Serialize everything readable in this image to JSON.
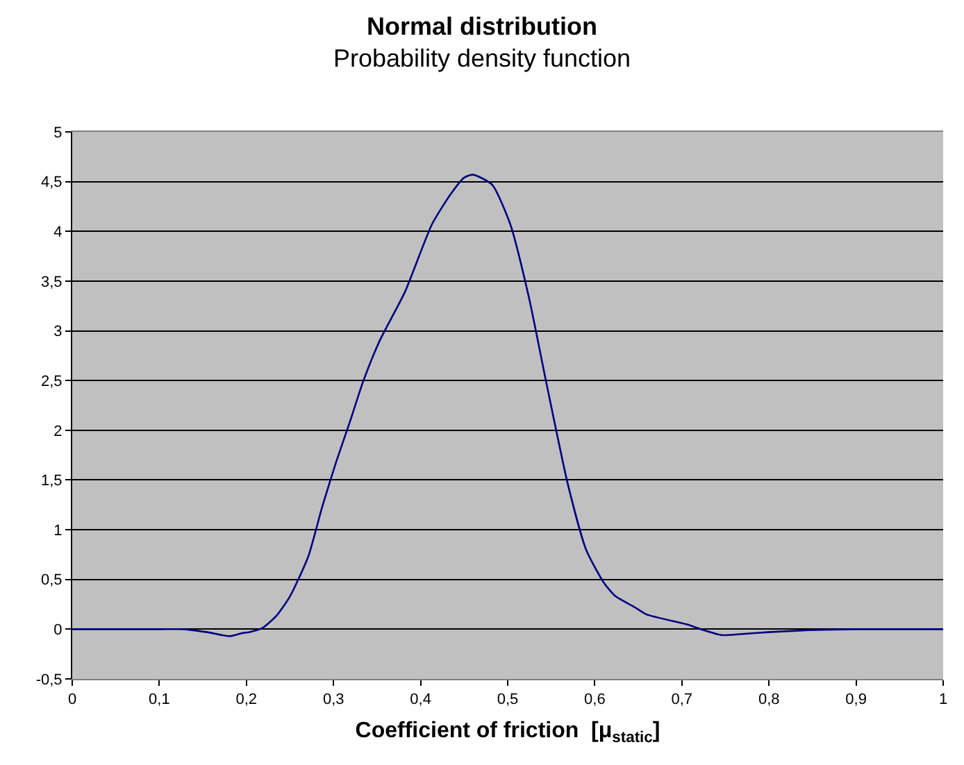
{
  "chart_data": {
    "type": "line",
    "title": "Normal distribution",
    "subtitle": "Probability density function",
    "xlabel": "Coefficient of friction  [μ$_{static}$]",
    "x": [
      0,
      0.05,
      0.1,
      0.128,
      0.155,
      0.181,
      0.195,
      0.203,
      0.218,
      0.234,
      0.25,
      0.271,
      0.287,
      0.303,
      0.319,
      0.334,
      0.353,
      0.382,
      0.413,
      0.435,
      0.45,
      0.46,
      0.482,
      0.503,
      0.524,
      0.545,
      0.569,
      0.59,
      0.611,
      0.624,
      0.646,
      0.659,
      0.709,
      0.725,
      0.746,
      0.767,
      0.799,
      0.846,
      0.9,
      1
    ],
    "series": [
      {
        "color": "#000080",
        "values": [
          0,
          0,
          0,
          0,
          -0.03,
          -0.07,
          -0.04,
          -0.03,
          0.01,
          0.13,
          0.33,
          0.73,
          1.23,
          1.68,
          2.09,
          2.49,
          2.9,
          3.39,
          4.07,
          4.38,
          4.54,
          4.57,
          4.47,
          4.07,
          3.35,
          2.45,
          1.46,
          0.8,
          0.46,
          0.33,
          0.22,
          0.15,
          0.04,
          -0.01,
          -0.06,
          -0.05,
          -0.03,
          -0.01,
          0,
          0
        ]
      }
    ],
    "xlim": [
      0,
      1
    ],
    "xticks": [
      0,
      {
        "value": 0.1,
        "label": "0,1"
      },
      {
        "value": 0.2,
        "label": "0,2"
      },
      {
        "value": 0.3,
        "label": "0,3"
      },
      {
        "value": 0.4,
        "label": "0,4"
      },
      {
        "value": 0.5,
        "label": "0,5"
      },
      {
        "value": 0.6,
        "label": "0,6"
      },
      {
        "value": 0.7,
        "label": "0,7"
      },
      {
        "value": 0.8,
        "label": "0,8"
      },
      {
        "value": 0.9,
        "label": "0,9"
      },
      1
    ],
    "ylim": [
      -0.5,
      5
    ],
    "yticks": [
      {
        "value": -0.5,
        "label": "-0,5"
      },
      0,
      {
        "value": 0.5,
        "label": "0,5"
      },
      1,
      {
        "value": 1.5,
        "label": "1,5"
      },
      2,
      {
        "value": 2.5,
        "label": "2,5"
      },
      3,
      {
        "value": 3.5,
        "label": "3,5"
      },
      4,
      {
        "value": 4.5,
        "label": "4,5"
      },
      5
    ],
    "grid": "y",
    "marker": "none",
    "line_style": "solid"
  }
}
